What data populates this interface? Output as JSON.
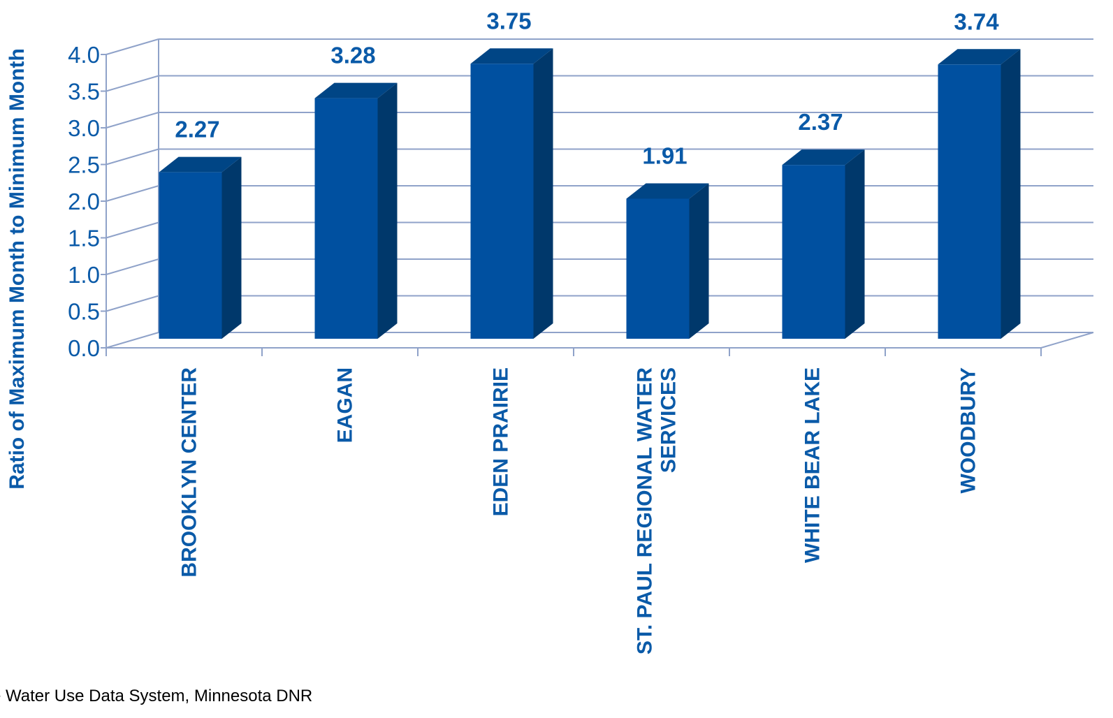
{
  "chart_data": {
    "type": "bar",
    "categories": [
      [
        "BROOKLYN CENTER"
      ],
      [
        "EAGAN"
      ],
      [
        "EDEN PRAIRIE"
      ],
      [
        "ST. PAUL REGIONAL WATER",
        "SERVICES"
      ],
      [
        "WHITE BEAR LAKE"
      ],
      [
        "WOODBURY"
      ]
    ],
    "values": [
      2.27,
      3.28,
      3.75,
      1.91,
      2.37,
      3.74
    ],
    "value_labels": [
      "2.27",
      "3.28",
      "3.75",
      "1.91",
      "2.37",
      "3.74"
    ],
    "ylabel": "Ratio of Maximum Month to Minimum Month",
    "ylim": [
      0,
      4.0
    ],
    "yticks": [
      "0.0",
      "0.5",
      "1.0",
      "1.5",
      "2.0",
      "2.5",
      "3.0",
      "3.5",
      "4.0"
    ],
    "grid": true,
    "legend": "none",
    "style": "3d-column"
  },
  "source_text": "e Water Use Data System, Minnesota DNR",
  "colors": {
    "bar_front": "#0050a0",
    "bar_side": "#00386b",
    "bar_top": "#004585",
    "text": "#0a5aa8",
    "grid": "#8fa2c9"
  }
}
